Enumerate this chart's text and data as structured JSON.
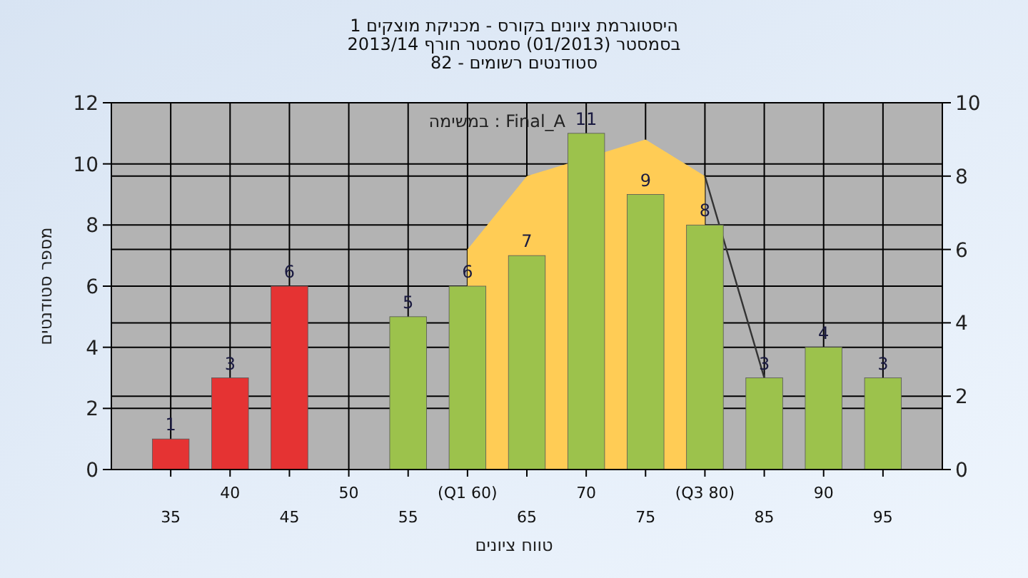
{
  "chart_data": {
    "type": "bar",
    "title": "היסטוגרמת ציונים בקורס - מכניקת מוצקים 1",
    "subtitle": "בסמסטר  (01/2013)  סמסטר חורף 2013/14",
    "annotations": [
      "סטודנטים רשומים - 82",
      "במשימה : Final_A"
    ],
    "xlabel": "טווח ציונים",
    "ylabel": "מספר סטודנטים",
    "categories": [
      "35",
      "40",
      "45",
      "50",
      "55",
      "(Q1 60)",
      "65",
      "70",
      "75",
      "(Q3 80)",
      "85",
      "90",
      "95"
    ],
    "series": [
      {
        "type": "area",
        "axis": "y2",
        "color": "#ffcc55",
        "values": [
          null,
          null,
          null,
          null,
          null,
          6,
          8,
          null,
          9,
          8,
          null,
          null,
          null
        ]
      },
      {
        "type": "line",
        "axis": "y2",
        "color": "#333333",
        "values": [
          null,
          null,
          null,
          null,
          null,
          null,
          null,
          null,
          null,
          8,
          2.5,
          null,
          null
        ]
      },
      {
        "values": [
          1,
          3,
          6,
          null,
          5,
          6,
          7,
          11,
          9,
          8,
          3,
          4,
          3
        ],
        "value_labels": [
          "1",
          "3",
          "6",
          null,
          "5",
          "6",
          "7",
          "11",
          "9",
          "8",
          "3",
          "4",
          "3"
        ],
        "colors": [
          "#e53333",
          "#e53333",
          "#e53333",
          null,
          "#9cc24c",
          "#9cc24c",
          "#9cc24c",
          "#9cc24c",
          "#9cc24c",
          "#9cc24c",
          "#9cc24c",
          "#9cc24c",
          "#9cc24c"
        ]
      }
    ],
    "grid": true,
    "ylim": [
      0,
      12
    ],
    "yticks": [
      0,
      2,
      4,
      6,
      8,
      10,
      12
    ],
    "y2lim": [
      0,
      10
    ],
    "y2ticks": [
      0,
      2,
      4,
      6,
      8,
      10
    ]
  }
}
